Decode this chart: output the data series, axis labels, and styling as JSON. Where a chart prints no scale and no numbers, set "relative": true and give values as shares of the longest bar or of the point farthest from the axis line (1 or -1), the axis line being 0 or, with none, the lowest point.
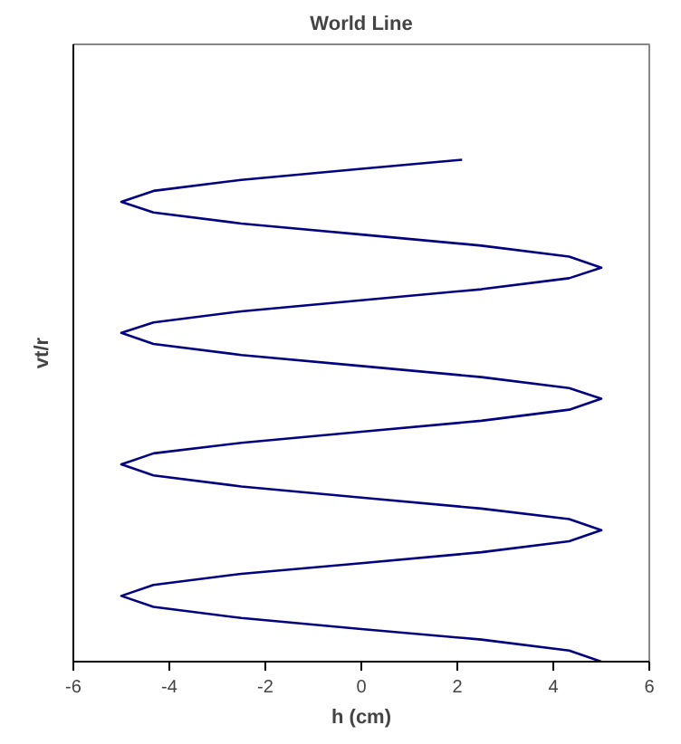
{
  "chart_data": {
    "type": "line",
    "title": "World Line",
    "xlabel": "h (cm)",
    "ylabel": "vt/r",
    "relative": true,
    "xlim": [
      -6,
      6
    ],
    "xticks": [
      -6,
      -4,
      -2,
      0,
      2,
      4,
      6
    ],
    "grid": false,
    "series": [
      {
        "color": "#000080",
        "x": [
          5,
          4.33,
          2.5,
          0,
          -2.5,
          -4.33,
          -5,
          -4.33,
          -2.5,
          0,
          2.5,
          4.33,
          5,
          4.33,
          2.5,
          0,
          -2.5,
          -4.33,
          -5,
          -4.33,
          -2.5,
          0,
          2.5,
          4.33,
          5,
          4.33,
          2.5,
          0,
          -2.5,
          -4.33,
          -5,
          -4.33,
          -2.5,
          0,
          2.5,
          4.33,
          5,
          4.33,
          2.5,
          0,
          -2.5,
          -4.33,
          -5,
          -4.33,
          -2.5,
          0,
          2.1
        ],
        "values": [
          0,
          0.022,
          0.044,
          0.065,
          0.087,
          0.109,
          0.131,
          0.153,
          0.175,
          0.196,
          0.218,
          0.24,
          0.262,
          0.284,
          0.305,
          0.327,
          0.349,
          0.371,
          0.393,
          0.415,
          0.436,
          0.458,
          0.48,
          0.502,
          0.524,
          0.545,
          0.567,
          0.589,
          0.611,
          0.633,
          0.655,
          0.676,
          0.698,
          0.72,
          0.742,
          0.764,
          0.785,
          0.807,
          0.829,
          0.851,
          0.873,
          0.895,
          0.916,
          0.938,
          0.96,
          0.982,
          1.0
        ]
      }
    ]
  }
}
